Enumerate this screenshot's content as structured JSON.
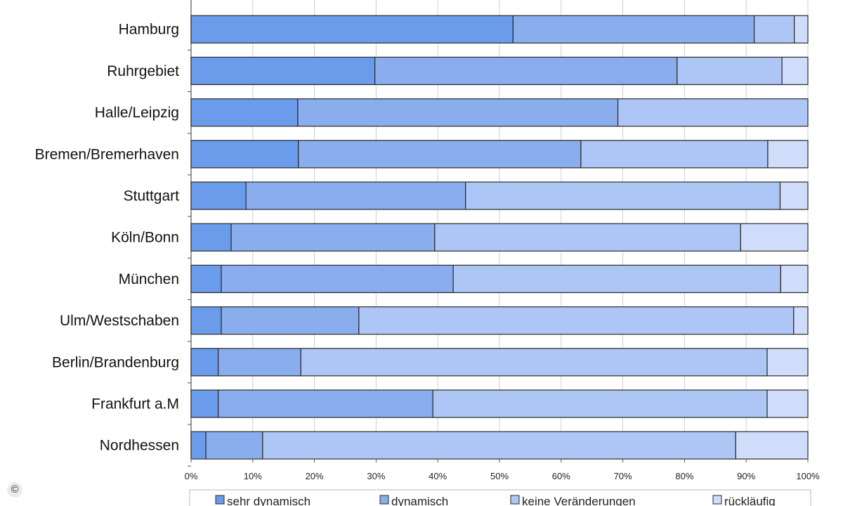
{
  "chart_data": {
    "type": "bar",
    "orientation": "horizontal",
    "stacked": "percent",
    "categories": [
      "Hamburg",
      "Ruhrgebiet",
      "Halle/Leipzig",
      "Bremen/Bremerhaven",
      "Stuttgart",
      "Köln/Bonn",
      "München",
      "Ulm/Westschaben",
      "Berlin/Brandenburg",
      "Frankfurt a.M",
      "Nordhessen"
    ],
    "series": [
      {
        "name": "sehr dynamisch",
        "color": "#6b9ceb",
        "values": [
          52.2,
          29.8,
          17.3,
          17.4,
          8.9,
          6.5,
          4.9,
          4.9,
          4.4,
          4.4,
          2.4
        ]
      },
      {
        "name": "dynamisch",
        "color": "#8aadee",
        "values": [
          39.1,
          49.0,
          51.9,
          45.8,
          35.6,
          33.0,
          37.6,
          22.3,
          13.4,
          34.8,
          9.2
        ]
      },
      {
        "name": "keine Veränderungen",
        "color": "#aec6f5",
        "values": [
          6.5,
          17.0,
          30.8,
          30.3,
          51.0,
          49.6,
          53.1,
          70.5,
          75.6,
          54.2,
          76.7
        ]
      },
      {
        "name": "rückläufig",
        "color": "#cfddfa",
        "values": [
          2.2,
          4.2,
          0.0,
          6.5,
          4.5,
          10.9,
          4.4,
          2.3,
          6.6,
          6.6,
          11.7
        ]
      }
    ],
    "x_ticks": [
      "0%",
      "10%",
      "20%",
      "30%",
      "40%",
      "50%",
      "60%",
      "70%",
      "80%",
      "90%",
      "100%"
    ],
    "xlim": [
      0,
      100
    ],
    "grid": true,
    "legend_position": "bottom"
  },
  "copyright_symbol": "©"
}
